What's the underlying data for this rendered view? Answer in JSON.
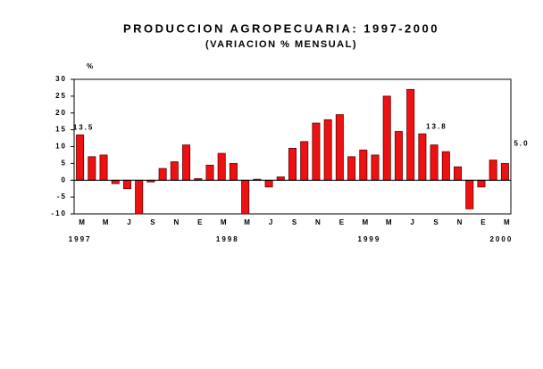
{
  "chart_data": {
    "type": "bar",
    "title": "PRODUCCION AGROPECUARIA: 1997-2000",
    "subtitle": "(VARIACION % MENSUAL)",
    "y_label": "%",
    "categories": [
      "M",
      null,
      "M",
      null,
      "J",
      null,
      "S",
      null,
      "N",
      null,
      "E",
      null,
      "M",
      null,
      "M",
      null,
      "J",
      null,
      "S",
      null,
      "N",
      null,
      "E",
      null,
      "M",
      null,
      "M",
      null,
      "J",
      null,
      "S",
      null,
      "N",
      null,
      "E",
      null,
      "M"
    ],
    "years": [
      "1997",
      "1998",
      "1999",
      "2000"
    ],
    "values": [
      13.5,
      7,
      7.5,
      -1,
      -2.5,
      -10,
      -0.5,
      3.5,
      5.5,
      10.5,
      0.5,
      4.5,
      8,
      5,
      -10,
      0.3,
      -2,
      1,
      9.5,
      11.5,
      17,
      18,
      19.5,
      7,
      9,
      7.5,
      25,
      14.5,
      27,
      13.8,
      10.5,
      8.5,
      4,
      -8.5,
      -2,
      6,
      5.0
    ],
    "value_labels": [
      "13.5",
      null,
      null,
      null,
      null,
      null,
      null,
      null,
      null,
      null,
      null,
      null,
      null,
      null,
      null,
      null,
      null,
      null,
      null,
      null,
      null,
      null,
      null,
      null,
      null,
      null,
      null,
      null,
      null,
      "13.8",
      null,
      null,
      null,
      null,
      null,
      null,
      "5.0"
    ],
    "color": "#ee1111",
    "ylim": [
      -10,
      30
    ],
    "yticks": [
      -10,
      -5,
      0,
      5,
      10,
      15,
      20,
      25,
      30
    ]
  }
}
